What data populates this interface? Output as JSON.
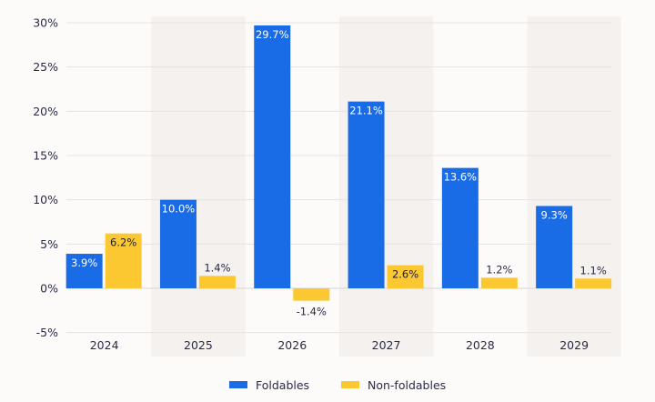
{
  "chart_data": {
    "type": "bar",
    "categories": [
      "2024",
      "2025",
      "2026",
      "2027",
      "2028",
      "2029"
    ],
    "series": [
      {
        "name": "Foldables",
        "values": [
          3.9,
          10.0,
          29.7,
          21.1,
          13.6,
          9.3
        ],
        "labels": [
          "3.9%",
          "10.0%",
          "29.7%",
          "21.1%",
          "13.6%",
          "9.3%"
        ],
        "color": "#1a6be6"
      },
      {
        "name": "Non-foldables",
        "values": [
          6.2,
          1.4,
          -1.4,
          2.6,
          1.2,
          1.1
        ],
        "labels": [
          "6.2%",
          "1.4%",
          "-1.4%",
          "2.6%",
          "1.2%",
          "1.1%"
        ],
        "color": "#fcc832"
      }
    ],
    "ylim": [
      -5,
      30
    ],
    "yticks": [
      30,
      25,
      20,
      15,
      10,
      5,
      0,
      -5
    ],
    "ytick_labels": [
      "30%",
      "25%",
      "20%",
      "15%",
      "10%",
      "5%",
      "0%",
      "-5%"
    ],
    "grid": true,
    "shaded_categories": [
      "2025",
      "2027",
      "2029"
    ],
    "legend_position": "bottom",
    "colors": {
      "background": "#fdfbf9",
      "shade": "#f4f1ee",
      "grid": "#e6e3e0",
      "text": "#2a2a48"
    }
  }
}
